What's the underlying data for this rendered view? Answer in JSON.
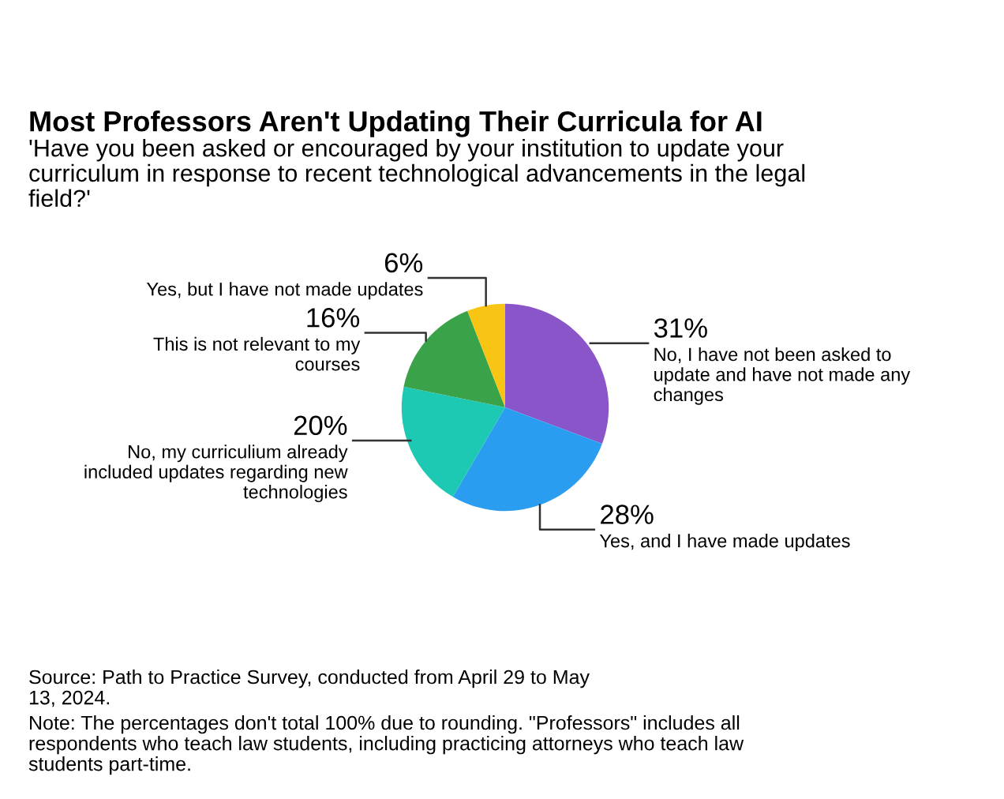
{
  "chart_data": {
    "type": "pie",
    "title": "Most Professors Aren't Updating Their Curricula for AI",
    "subtitle": "'Have you been asked or encouraged by your institution to update your\ncurriculum in response to recent technological advancements in the legal\nfield?'",
    "categories": [
      "No, I have not been asked to\nupdate and have not made any\nchanges",
      "Yes, and I have made updates",
      "No, my curriculium already\nincluded updates regarding new\ntechnologies",
      "This is not relevant to my\ncourses",
      "Yes, but I have not made updates"
    ],
    "values": [
      31,
      28,
      20,
      16,
      6
    ],
    "colors": [
      "#8a55c9",
      "#2a9df0",
      "#1ec9b4",
      "#3aa34a",
      "#f8c515"
    ],
    "value_labels": [
      "31%",
      "28%",
      "20%",
      "16%",
      "6%"
    ],
    "annotations": [
      "Source: Path to Practice Survey, conducted from April 29 to May\n13, 2024.",
      "Note: The percentages don't total 100% due to rounding. \"Professors\" includes all\nrespondents who teach law students, including practicing attorneys who teach law\nstudents part-time."
    ]
  }
}
